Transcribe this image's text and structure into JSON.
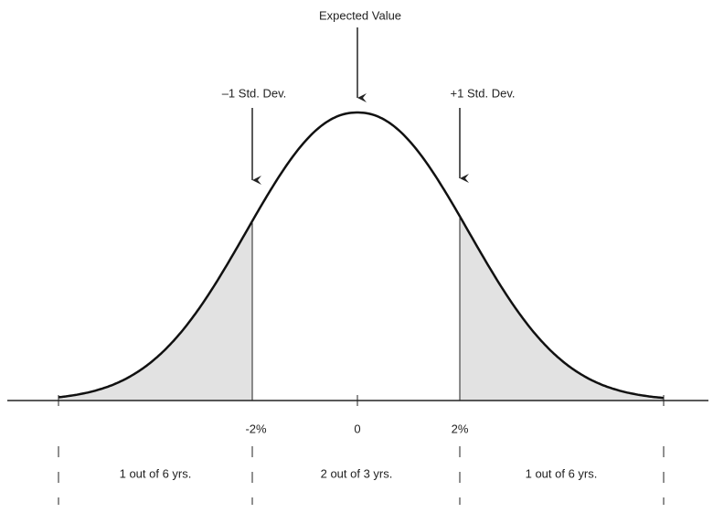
{
  "annotations": {
    "expected": "Expected Value",
    "minus_sd": "–1 Std. Dev.",
    "plus_sd": "+1 Std. Dev."
  },
  "axis_labels": [
    "-2%",
    "0",
    "2%"
  ],
  "regions": [
    "1 out of 6 yrs.",
    "2 out of 3 yrs.",
    "1 out of 6 yrs."
  ]
}
